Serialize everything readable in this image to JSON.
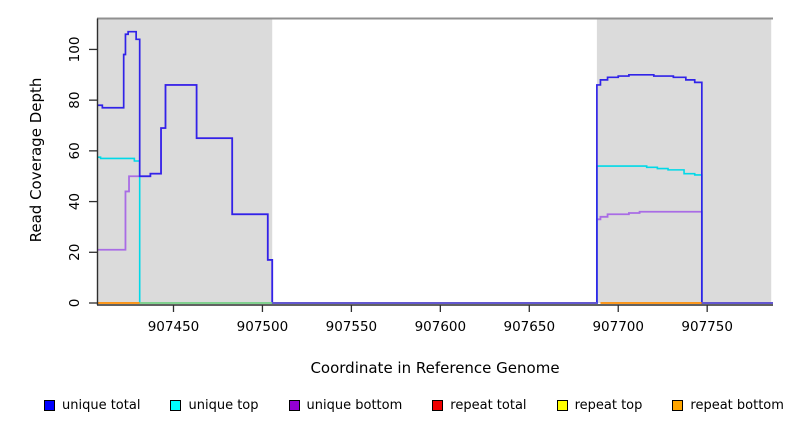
{
  "figure": {
    "background": "#FFFFFF",
    "masked_region_color": "#DBDBDB",
    "top_border_color": "#909090",
    "axis_color": "#2E2E2E"
  },
  "chart_data": {
    "type": "line",
    "subtype": "step",
    "title": "",
    "xlabel": "Coordinate in Reference Genome",
    "ylabel": "Read Coverage Depth",
    "xlim": [
      907407,
      907787
    ],
    "ylim": [
      0,
      112.2
    ],
    "grid": false,
    "x_ticks": [
      907450,
      907500,
      907550,
      907600,
      907650,
      907700,
      907750
    ],
    "y_ticks": [
      0,
      20,
      40,
      60,
      80,
      100
    ],
    "masked_regions": [
      {
        "from": 907407,
        "to": 907505.5
      },
      {
        "from": 907688,
        "to": 907786
      }
    ],
    "top_border_value": 112.2,
    "series": [
      {
        "name": "unique bottom",
        "color": "#A96CE5",
        "width": 1.8,
        "points": [
          [
            907407,
            21
          ],
          [
            907423,
            44
          ],
          [
            907425,
            50
          ],
          [
            907431,
            50
          ],
          [
            907437,
            51
          ],
          [
            907443,
            69
          ],
          [
            907445.5,
            86
          ],
          [
            907463,
            65
          ],
          [
            907483,
            35
          ],
          [
            907503,
            17
          ],
          [
            907505.5,
            0
          ],
          [
            907688,
            33
          ],
          [
            907690,
            34
          ],
          [
            907694,
            35
          ],
          [
            907706,
            35.5
          ],
          [
            907712,
            36
          ],
          [
            907747,
            0
          ],
          [
            907787,
            0
          ]
        ]
      },
      {
        "name": "unique top",
        "color": "#00D9E8",
        "width": 1.6,
        "points": [
          [
            907407,
            57.5
          ],
          [
            907409,
            57
          ],
          [
            907428,
            56
          ],
          [
            907431,
            0
          ],
          [
            907688,
            54
          ],
          [
            907716,
            53.5
          ],
          [
            907722,
            53
          ],
          [
            907728,
            52.5
          ],
          [
            907737,
            51
          ],
          [
            907743,
            50.5
          ],
          [
            907747,
            0
          ],
          [
            907787,
            0
          ]
        ]
      },
      {
        "name": "unique total",
        "color": "#3023E8",
        "width": 1.7,
        "points": [
          [
            907407,
            78
          ],
          [
            907410,
            77
          ],
          [
            907422,
            98
          ],
          [
            907423,
            106
          ],
          [
            907424.5,
            107
          ],
          [
            907429,
            104
          ],
          [
            907431,
            50
          ],
          [
            907437,
            51
          ],
          [
            907443,
            69
          ],
          [
            907445.5,
            86
          ],
          [
            907463,
            65
          ],
          [
            907483,
            35
          ],
          [
            907503,
            17
          ],
          [
            907505.5,
            0
          ],
          [
            907688,
            86
          ],
          [
            907690,
            88
          ],
          [
            907694,
            89
          ],
          [
            907700,
            89.5
          ],
          [
            907706,
            90
          ],
          [
            907720,
            89.5
          ],
          [
            907731,
            89
          ],
          [
            907738,
            88
          ],
          [
            907743,
            87
          ],
          [
            907747,
            0
          ],
          [
            907787,
            0
          ]
        ]
      }
    ],
    "zero_line_segments": [
      {
        "color": "#FF8C00",
        "from": 907407,
        "to": 907431
      },
      {
        "color": "#82CF82",
        "from": 907431,
        "to": 907505.5
      },
      {
        "color": "#6A5ACD",
        "from": 907505.5,
        "to": 907688
      },
      {
        "color": "#FF8C00",
        "from": 907690,
        "to": 907747
      },
      {
        "color": "#6A5ACD",
        "from": 907747,
        "to": 907787
      }
    ],
    "legend": {
      "position": "bottom",
      "items": [
        {
          "label": "unique total",
          "color": "#0000FF"
        },
        {
          "label": "unique top",
          "color": "#00FFFF"
        },
        {
          "label": "unique bottom",
          "color": "#9400D3"
        },
        {
          "label": "repeat total",
          "color": "#EE0000"
        },
        {
          "label": "repeat top",
          "color": "#FFFF00"
        },
        {
          "label": "repeat bottom",
          "color": "#FFA500"
        }
      ]
    }
  }
}
